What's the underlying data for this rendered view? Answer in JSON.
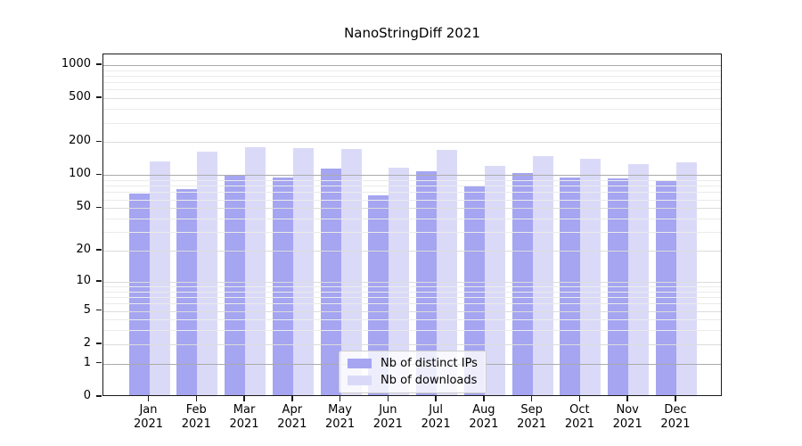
{
  "title": "NanoStringDiff 2021",
  "chart_data": {
    "type": "bar",
    "title": "NanoStringDiff 2021",
    "categories": [
      "Jan 2021",
      "Feb 2021",
      "Mar 2021",
      "Apr 2021",
      "May 2021",
      "Jun 2021",
      "Jul 2021",
      "Aug 2021",
      "Sep 2021",
      "Oct 2021",
      "Nov 2021",
      "Dec 2021"
    ],
    "series": [
      {
        "name": "Nb of distinct IPs",
        "color": "#a5a5f1",
        "values": [
          68,
          75,
          100,
          95,
          115,
          66,
          109,
          81,
          104,
          96,
          94,
          89
        ]
      },
      {
        "name": "Nb of downloads",
        "color": "#dadaf8",
        "values": [
          133,
          165,
          180,
          177,
          174,
          118,
          171,
          122,
          150,
          141,
          126,
          132
        ]
      }
    ],
    "y_ticks": [
      0,
      1,
      2,
      5,
      10,
      20,
      50,
      100,
      200,
      500,
      1000
    ],
    "y_scale": "log1p",
    "ylim": [
      0,
      1280
    ],
    "xlabel": "",
    "ylabel": "",
    "grid": true,
    "legend_position": "bottom-center-inside"
  },
  "colors": {
    "bar_distinct_ips": "#a5a5f1",
    "bar_downloads": "#dadaf8",
    "grid_strong": "#ababab",
    "grid_minor": "#ebebeb",
    "frame": "#1a1a1a",
    "legend_border": "#cccccc"
  }
}
